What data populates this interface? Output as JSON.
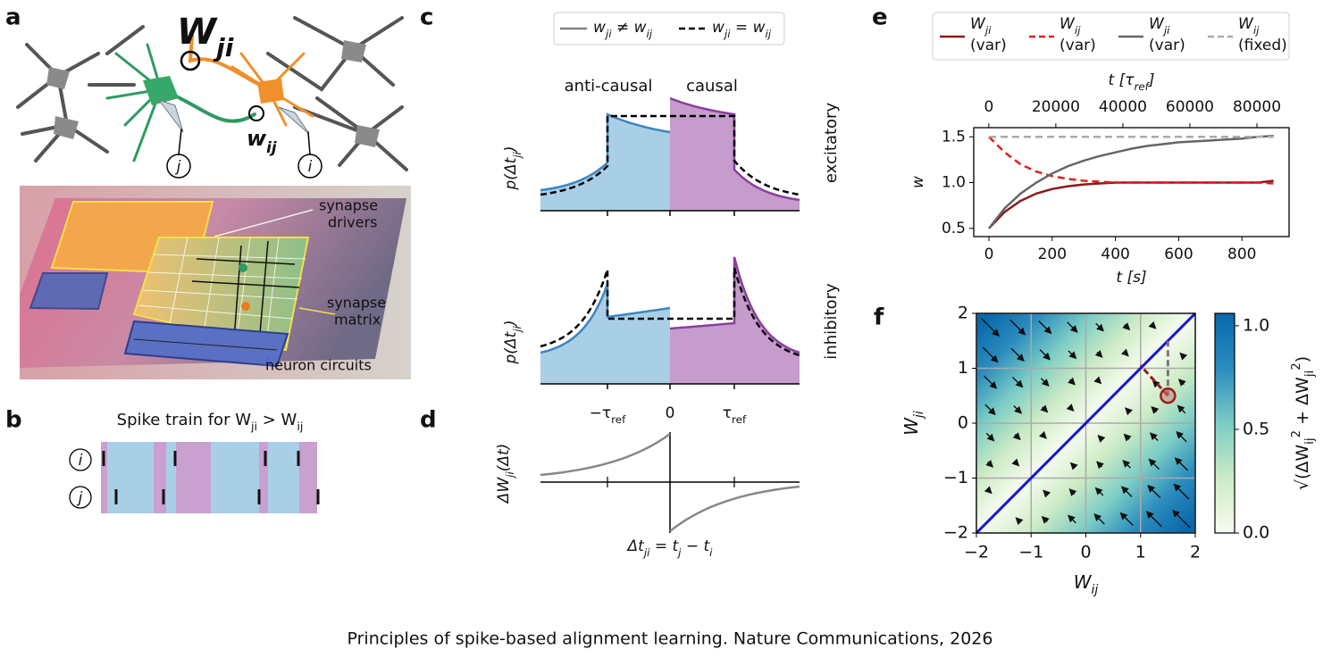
{
  "caption": "Principles of spike-based alignment learning. Nature Communications, 2026",
  "panel_labels": [
    "a",
    "b",
    "c",
    "d",
    "e",
    "f"
  ],
  "panel_a": {
    "big_weight": [
      "W",
      "ji"
    ],
    "small_weight": [
      "w",
      "ij"
    ],
    "neuron_j": "j",
    "neuron_i": "i",
    "chip_labels": [
      [
        "synapse",
        "drivers"
      ],
      [
        "synapse",
        "matrix"
      ],
      [
        "neuron circuits"
      ]
    ]
  },
  "panel_b": {
    "title": [
      "Spike train for W",
      "ji",
      " > W",
      "ij"
    ],
    "rows": [
      "i",
      "j"
    ]
  },
  "panel_c": {
    "legend": [
      {
        "label": [
          "w",
          "ji",
          " ≠ w",
          "ij"
        ],
        "color": "#808080",
        "dash": false
      },
      {
        "label": [
          "w",
          "ji",
          " = w",
          "ij"
        ],
        "color": "#000000",
        "dash": true
      }
    ],
    "regions": [
      "anti-causal",
      "causal"
    ],
    "rows": [
      "excitatory",
      "inhibitory"
    ],
    "y_label": [
      "p(Δt",
      "ji",
      ")"
    ],
    "x_ticks": [
      [
        "−τ",
        "ref"
      ],
      [
        "0"
      ],
      [
        "τ",
        "ref"
      ]
    ]
  },
  "panel_d": {
    "y_label": [
      "ΔW",
      "ji",
      "(Δt)"
    ],
    "x_label": [
      "Δt",
      "ji",
      " = t",
      "j",
      " − t",
      "i"
    ]
  },
  "chart_data": [
    {
      "type": "line",
      "x_label": "t [s]",
      "x2_label": [
        "t [τ",
        "ref",
        "]"
      ],
      "y_label": "w",
      "x": [
        0,
        50,
        100,
        150,
        200,
        250,
        300,
        350,
        400,
        450,
        500,
        550,
        600,
        650,
        700,
        750,
        800,
        850,
        900
      ],
      "series": [
        {
          "name": [
            "W",
            "ji"
          ],
          "note": "(var)",
          "color": "#8b1a1a",
          "dash": false,
          "values": [
            0.5,
            0.68,
            0.8,
            0.88,
            0.93,
            0.96,
            0.98,
            0.99,
            1.0,
            1.0,
            1.0,
            1.0,
            1.0,
            1.0,
            1.0,
            1.0,
            1.0,
            1.0,
            1.02
          ]
        },
        {
          "name": [
            "W",
            "ij"
          ],
          "note": "(var)",
          "color": "#e02020",
          "dash": true,
          "values": [
            1.5,
            1.33,
            1.2,
            1.12,
            1.07,
            1.04,
            1.02,
            1.01,
            1.0,
            1.0,
            1.0,
            1.0,
            1.0,
            1.0,
            1.0,
            1.0,
            1.0,
            1.0,
            0.99
          ]
        },
        {
          "name": [
            "W",
            "ji"
          ],
          "note": "(var)",
          "color": "#666666",
          "dash": false,
          "values": [
            0.5,
            0.72,
            0.88,
            1.0,
            1.1,
            1.18,
            1.24,
            1.29,
            1.33,
            1.37,
            1.4,
            1.42,
            1.44,
            1.45,
            1.46,
            1.47,
            1.48,
            1.5,
            1.51
          ]
        },
        {
          "name": [
            "W",
            "ij"
          ],
          "note": "(fixed)",
          "color": "#aaaaaa",
          "dash": true,
          "values": [
            1.5,
            1.5,
            1.5,
            1.5,
            1.5,
            1.5,
            1.5,
            1.5,
            1.5,
            1.5,
            1.5,
            1.5,
            1.5,
            1.5,
            1.5,
            1.5,
            1.5,
            1.5,
            1.5
          ]
        }
      ],
      "xlim": [
        -48,
        949
      ],
      "xticks": [
        0,
        200,
        400,
        600,
        800
      ],
      "x2lim": [
        -4500,
        89600
      ],
      "x2ticks": [
        0,
        20000,
        40000,
        60000,
        80000
      ],
      "ylim": [
        0.41,
        1.6
      ],
      "yticks": [
        {
          "value": 0.5,
          "label": "0.5"
        },
        {
          "value": 1,
          "label": "1.0"
        },
        {
          "value": 1.5,
          "label": "1.5"
        }
      ]
    },
    {
      "type": "quiver",
      "x_label": [
        "W",
        "ij"
      ],
      "y_label": [
        "W",
        "ji"
      ],
      "xlim": [
        -2,
        2
      ],
      "ylim": [
        -2,
        2
      ],
      "xticks": [
        {
          "value": -2,
          "label": "−2"
        },
        {
          "value": -1,
          "label": "−1"
        },
        0,
        1,
        2
      ],
      "yticks": [
        {
          "value": -2,
          "label": "−2"
        },
        {
          "value": -1,
          "label": "−1"
        },
        0,
        1,
        2
      ],
      "grid": true,
      "diagonal_color": "#1414d8",
      "colorbar": {
        "label": [
          "√(ΔW",
          "ij",
          "2",
          " + ΔW",
          "ji",
          "2",
          ")"
        ],
        "lim": [
          0,
          1.06
        ],
        "ticks": [
          {
            "value": 0,
            "label": "0.0"
          },
          {
            "value": 0.5,
            "label": "0.5"
          },
          {
            "value": 1,
            "label": "1.0"
          }
        ],
        "colormap": [
          "#f7fcf0",
          "#ccebc5",
          "#7bccc4",
          "#2b8cbe",
          "#0868ac"
        ]
      },
      "trajectories": [
        {
          "color": "#777777",
          "x": [
            1.5,
            1.5
          ],
          "y": [
            0.5,
            1.5
          ]
        },
        {
          "color": "#9b1c1c",
          "x": [
            1.5,
            1.0
          ],
          "y": [
            0.5,
            1.05
          ]
        }
      ],
      "start": {
        "x": 1.5,
        "y": 0.5,
        "color": "#9b1c1c"
      }
    }
  ]
}
